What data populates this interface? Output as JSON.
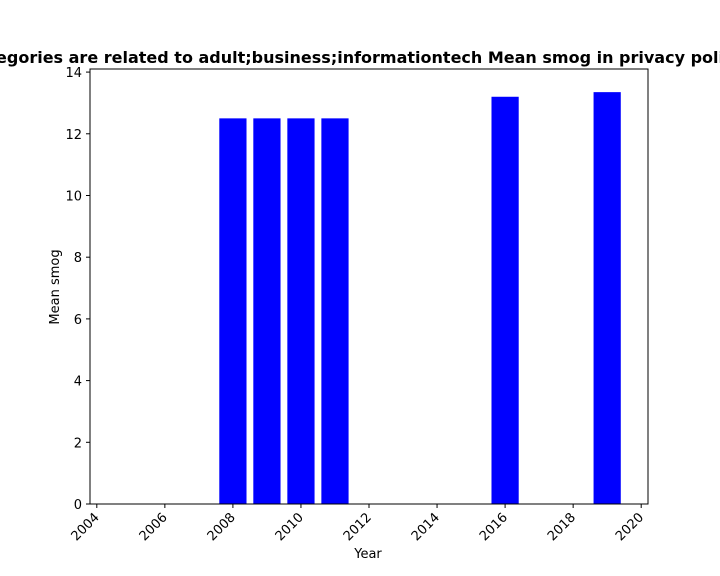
{
  "chart_data": {
    "type": "bar",
    "title": "egories are related to adult;business;informationtech Mean smog in privacy poli",
    "xlabel": "Year",
    "ylabel": "Mean smog",
    "x": [
      2008,
      2009,
      2010,
      2011,
      2016,
      2019
    ],
    "values": [
      12.5,
      12.5,
      12.5,
      12.5,
      13.2,
      13.35
    ],
    "xlim": [
      2003.8,
      2020.2
    ],
    "ylim": [
      0,
      14.1
    ],
    "xticks": [
      "2004",
      "2006",
      "2008",
      "2010",
      "2012",
      "2014",
      "2016",
      "2018",
      "2020"
    ],
    "yticks": [
      "0",
      "2",
      "4",
      "6",
      "8",
      "10",
      "12",
      "14"
    ],
    "bar_color": "#0000ff",
    "grid": false,
    "legend": "none"
  }
}
